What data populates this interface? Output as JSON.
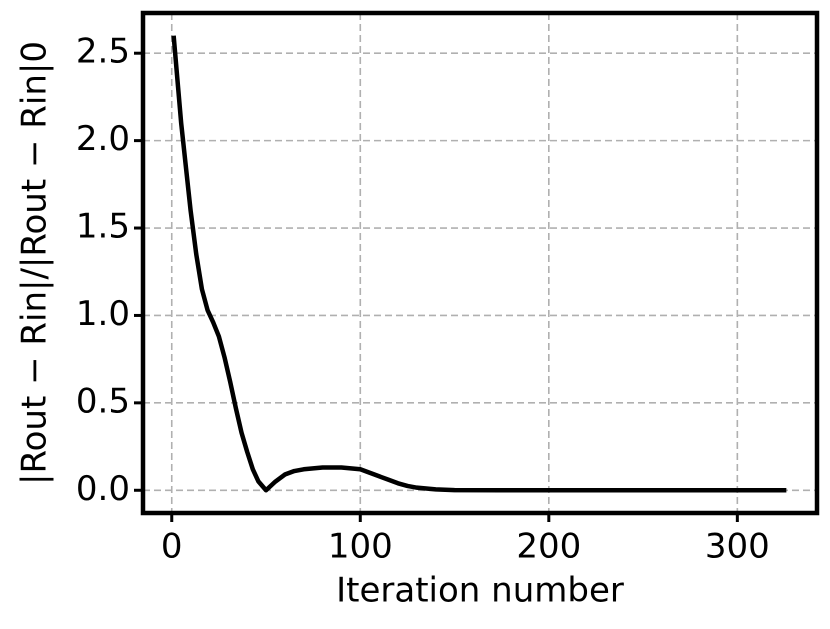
{
  "chart_data": {
    "type": "line",
    "x_label": "Iteration number",
    "y_label": "|Rout − Rin|/|Rout − Rin|0",
    "x": [
      1,
      3,
      5,
      8,
      10,
      13,
      16,
      19,
      22,
      25,
      28,
      31,
      34,
      37,
      40,
      43,
      46,
      50,
      55,
      60,
      65,
      70,
      75,
      80,
      85,
      90,
      95,
      100,
      105,
      110,
      115,
      120,
      125,
      130,
      140,
      150,
      175,
      200,
      250,
      300,
      326
    ],
    "series": [
      {
        "color": "#000000",
        "values": [
          2.6,
          2.35,
          2.1,
          1.8,
          1.6,
          1.35,
          1.15,
          1.03,
          0.96,
          0.88,
          0.76,
          0.62,
          0.47,
          0.33,
          0.22,
          0.12,
          0.05,
          0.0,
          0.05,
          0.09,
          0.11,
          0.12,
          0.125,
          0.13,
          0.13,
          0.13,
          0.125,
          0.12,
          0.1,
          0.08,
          0.06,
          0.04,
          0.025,
          0.015,
          0.005,
          0.001,
          0,
          0,
          0,
          0,
          0
        ]
      }
    ],
    "xlim": [
      -15.25,
      342.25
    ],
    "xticks": [
      0,
      100,
      200,
      300
    ],
    "ylim": [
      -0.13,
      2.73
    ],
    "yticks": [
      {
        "value": 0,
        "label": "0.0"
      },
      {
        "value": 0.5,
        "label": "0.5"
      },
      {
        "value": 1,
        "label": "1.0"
      },
      {
        "value": 1.5,
        "label": "1.5"
      },
      {
        "value": 2,
        "label": "2.0"
      },
      {
        "value": 2.5,
        "label": "2.5"
      }
    ],
    "grid": true
  }
}
